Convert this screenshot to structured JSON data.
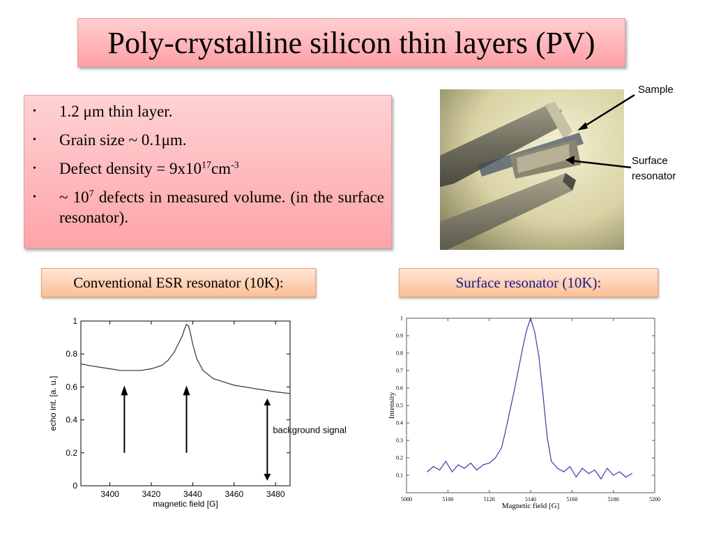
{
  "title": "Poly-crystalline silicon thin layers (PV)",
  "bullets": [
    {
      "pre": "1.2 μm thin layer.",
      "sup": "",
      "mid": "",
      "sup2": "",
      "post": ""
    },
    {
      "pre": "Grain size ~ 0.1μm.",
      "sup": "",
      "mid": "",
      "sup2": "",
      "post": ""
    },
    {
      "pre": "Defect density = 9x10",
      "sup": "17",
      "mid": "cm",
      "sup2": "-3",
      "post": ""
    },
    {
      "pre": "~ 10",
      "sup": "7",
      "mid": " defects in measured volume. (in the surface resonator).",
      "sup2": "",
      "post": ""
    }
  ],
  "photo": {
    "sample_label": "Sample",
    "resonator_label_line1": "Surface",
    "resonator_label_line2": "resonator"
  },
  "conventional_label": "Conventional ESR resonator (10K):",
  "surface_label": "Surface resonator (10K):",
  "colors": {
    "title_bg": "#fda0a5",
    "subtitle_bg": "#fbbf95",
    "surface_label_text": "#1a1a8c",
    "surface_line": "#3a3aa8"
  },
  "chart_data": [
    {
      "type": "line",
      "xlabel": "magnetic field [G]",
      "ylabel": "echo int. [a. u.]",
      "xlim": [
        3386,
        3487
      ],
      "ylim": [
        0,
        1
      ],
      "xticks": [
        3400,
        3420,
        3440,
        3460,
        3480
      ],
      "yticks": [
        0,
        0.2,
        0.4,
        0.6,
        0.8,
        1
      ],
      "grid": false,
      "x": [
        3386,
        3390,
        3395,
        3400,
        3405,
        3410,
        3415,
        3420,
        3425,
        3428,
        3431,
        3433,
        3435,
        3436,
        3437,
        3438,
        3439,
        3440,
        3442,
        3445,
        3450,
        3455,
        3460,
        3465,
        3470,
        3475,
        3480,
        3487
      ],
      "y": [
        0.74,
        0.73,
        0.72,
        0.71,
        0.7,
        0.7,
        0.7,
        0.71,
        0.73,
        0.76,
        0.81,
        0.86,
        0.91,
        0.95,
        0.98,
        0.97,
        0.92,
        0.86,
        0.77,
        0.7,
        0.65,
        0.63,
        0.61,
        0.6,
        0.59,
        0.58,
        0.57,
        0.56
      ],
      "annotations": [
        {
          "text": "background signal"
        }
      ]
    },
    {
      "type": "line",
      "xlabel": "Magnetic field [G]",
      "ylabel": "Intensity",
      "xlim": [
        5080,
        5200
      ],
      "ylim": [
        0,
        1
      ],
      "xticks": [
        5080,
        5100,
        5120,
        5140,
        5160,
        5180,
        5200
      ],
      "yticks": [
        0.1,
        0.2,
        0.3,
        0.4,
        0.5,
        0.6,
        0.7,
        0.8,
        0.9,
        1
      ],
      "grid": false,
      "x": [
        5090,
        5093,
        5096,
        5099,
        5102,
        5105,
        5108,
        5111,
        5114,
        5117,
        5120,
        5123,
        5126,
        5128,
        5130,
        5132,
        5134,
        5136,
        5138,
        5140,
        5142,
        5144,
        5146,
        5148,
        5150,
        5153,
        5156,
        5159,
        5162,
        5165,
        5168,
        5171,
        5174,
        5177,
        5180,
        5183,
        5186,
        5189
      ],
      "y": [
        0.12,
        0.15,
        0.13,
        0.18,
        0.12,
        0.16,
        0.14,
        0.17,
        0.13,
        0.16,
        0.17,
        0.2,
        0.26,
        0.36,
        0.47,
        0.58,
        0.7,
        0.82,
        0.93,
        1.0,
        0.92,
        0.78,
        0.56,
        0.32,
        0.18,
        0.14,
        0.12,
        0.15,
        0.09,
        0.14,
        0.11,
        0.13,
        0.08,
        0.14,
        0.1,
        0.12,
        0.09,
        0.11
      ]
    }
  ]
}
